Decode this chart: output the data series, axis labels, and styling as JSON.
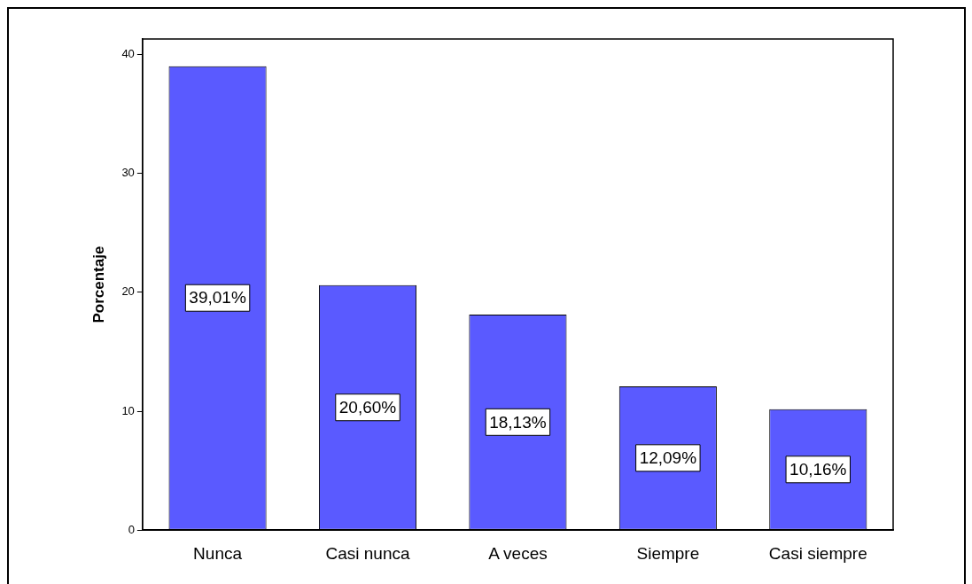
{
  "chart_data": {
    "type": "bar",
    "ylabel": "Porcentaje",
    "categories": [
      "Nunca",
      "Casi nunca",
      "A veces",
      "Siempre",
      "Casi siempre"
    ],
    "values": [
      39.01,
      20.6,
      18.13,
      12.09,
      10.16
    ],
    "value_labels": [
      "39,01%",
      "20,60%",
      "18,13%",
      "12,09%",
      "10,16%"
    ],
    "color": "#5a5aff",
    "ylim": [
      0,
      41.3
    ],
    "yticks": [
      0,
      10,
      20,
      30,
      40
    ],
    "grid": false,
    "legend": false
  }
}
